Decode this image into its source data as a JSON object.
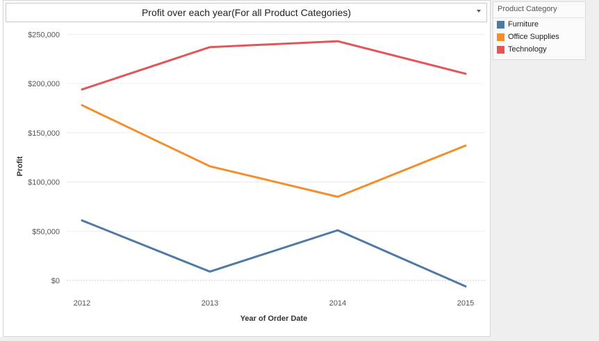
{
  "colors": {
    "furniture": "#4e79a7",
    "office_supplies": "#f28e2b",
    "technology": "#e15759"
  },
  "header": {
    "title": "Profit over each year(For all Product Categories)",
    "dropdown_icon": "caret-down-icon"
  },
  "legend": {
    "title": "Product Category",
    "items": [
      {
        "label": "Furniture",
        "color": "#4e79a7"
      },
      {
        "label": "Office Supplies",
        "color": "#f28e2b"
      },
      {
        "label": "Technology",
        "color": "#e15759"
      }
    ]
  },
  "chart_data": {
    "type": "line",
    "title": "Profit over each year(For all Product Categories)",
    "xlabel": "Year of Order Date",
    "ylabel": "Profit",
    "categories": [
      "2012",
      "2013",
      "2014",
      "2015"
    ],
    "yticks": [
      "$0",
      "$50,000",
      "$100,000",
      "$150,000",
      "$200,000",
      "$250,000"
    ],
    "ytick_values": [
      0,
      50000,
      100000,
      150000,
      200000,
      250000
    ],
    "ylim": [
      -12000,
      258000
    ],
    "grid": true,
    "legend_position": "right",
    "series": [
      {
        "name": "Furniture",
        "color": "#4e79a7",
        "values": [
          61000,
          9000,
          51000,
          -6000
        ]
      },
      {
        "name": "Office Supplies",
        "color": "#f28e2b",
        "values": [
          178000,
          116000,
          85000,
          137000
        ]
      },
      {
        "name": "Technology",
        "color": "#e15759",
        "values": [
          194000,
          237000,
          243000,
          210000
        ]
      }
    ]
  }
}
